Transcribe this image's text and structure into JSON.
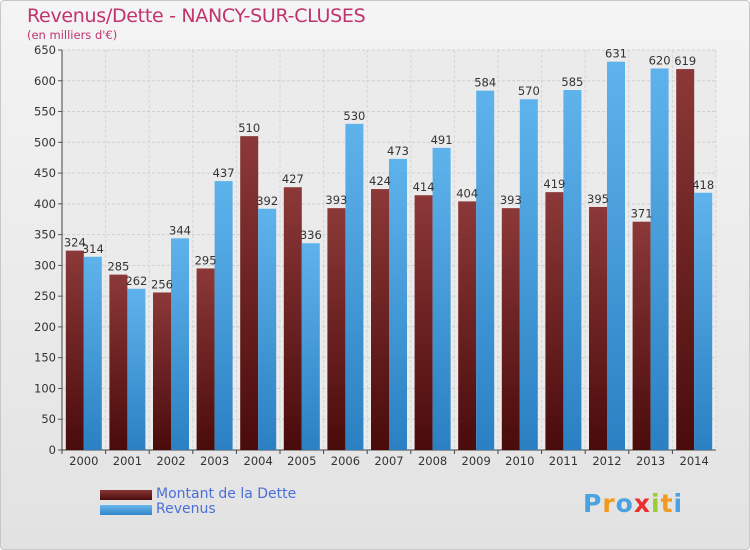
{
  "chart_data": {
    "type": "bar",
    "title": "Revenus/Dette - NANCY-SUR-CLUSES",
    "subtitle": "(en milliers d'€)",
    "xlabel": "",
    "ylabel": "",
    "ylim": [
      0,
      650
    ],
    "yticks": [
      0,
      50,
      100,
      150,
      200,
      250,
      300,
      350,
      400,
      450,
      500,
      550,
      600,
      650
    ],
    "grid": true,
    "categories": [
      "2000",
      "2001",
      "2002",
      "2003",
      "2004",
      "2005",
      "2006",
      "2007",
      "2008",
      "2009",
      "2010",
      "2011",
      "2012",
      "2013",
      "2014"
    ],
    "series": [
      {
        "name": "Montant de la Dette",
        "color": "#6b1c1c",
        "values": [
          324,
          285,
          256,
          295,
          510,
          427,
          393,
          424,
          414,
          404,
          393,
          419,
          395,
          371,
          619
        ]
      },
      {
        "name": "Revenus",
        "color": "#4aa3e0",
        "values": [
          314,
          262,
          344,
          437,
          392,
          336,
          530,
          473,
          491,
          584,
          570,
          585,
          631,
          620,
          418
        ]
      }
    ],
    "legend_position": "bottom-left"
  },
  "logo": {
    "letters": [
      "P",
      "r",
      "o",
      "x",
      "i",
      "t",
      "i"
    ],
    "colors": [
      "#4aa3e0",
      "#f29a1d",
      "#4aa3e0",
      "#e8312f",
      "#9acd32",
      "#f29a1d",
      "#4aa3e0"
    ]
  }
}
